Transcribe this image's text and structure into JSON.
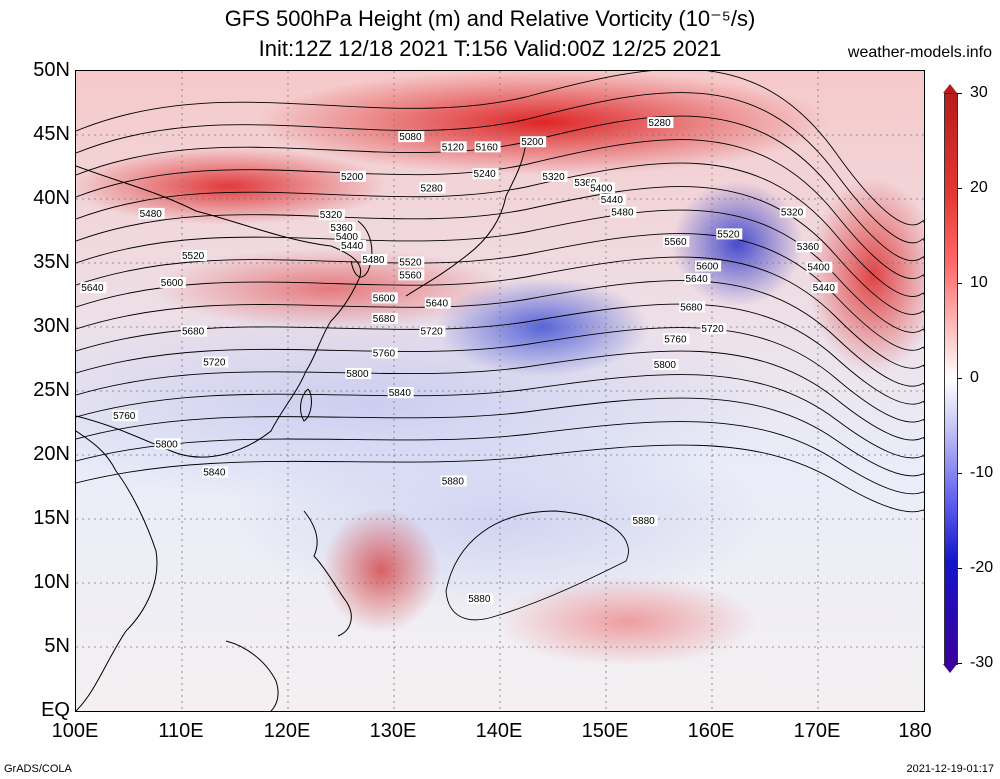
{
  "header": {
    "title_line1": "GFS 500hPa Height (m) and Relative Vorticity (10⁻⁵/s)",
    "title_line2": "Init:12Z 12/18 2021 T:156 Valid:00Z 12/25 2021",
    "site": "weather-models.info"
  },
  "axes": {
    "lat_labels": [
      "50N",
      "45N",
      "40N",
      "35N",
      "30N",
      "25N",
      "20N",
      "15N",
      "10N",
      "5N",
      "EQ"
    ],
    "lon_labels": [
      "100E",
      "110E",
      "120E",
      "130E",
      "140E",
      "150E",
      "160E",
      "170E",
      "180"
    ]
  },
  "colorbar": {
    "labels": [
      "30",
      "20",
      "10",
      "0",
      "-10",
      "-20",
      "-30"
    ],
    "colors": {
      "max": "#b71c1c",
      "zero": "#ffffff",
      "min": "#3b0099"
    }
  },
  "contours": {
    "labels": [
      {
        "text": "5080",
        "lon": 130.5,
        "lat": 44.6
      },
      {
        "text": "5120",
        "lon": 134.5,
        "lat": 43.8
      },
      {
        "text": "5160",
        "lon": 137.7,
        "lat": 43.8
      },
      {
        "text": "5200",
        "lon": 142.0,
        "lat": 44.2
      },
      {
        "text": "5200",
        "lon": 125.0,
        "lat": 41.5
      },
      {
        "text": "5240",
        "lon": 137.5,
        "lat": 41.7
      },
      {
        "text": "5280",
        "lon": 132.5,
        "lat": 40.6
      },
      {
        "text": "5320",
        "lon": 144.0,
        "lat": 41.5
      },
      {
        "text": "5360",
        "lon": 147.0,
        "lat": 41.0
      },
      {
        "text": "5400",
        "lon": 148.5,
        "lat": 40.6
      },
      {
        "text": "5440",
        "lon": 149.5,
        "lat": 39.7
      },
      {
        "text": "5480",
        "lon": 150.5,
        "lat": 38.7
      },
      {
        "text": "5280",
        "lon": 154.0,
        "lat": 45.7
      },
      {
        "text": "5320",
        "lon": 166.5,
        "lat": 38.7
      },
      {
        "text": "5360",
        "lon": 168.0,
        "lat": 36.0
      },
      {
        "text": "5400",
        "lon": 169.0,
        "lat": 34.4
      },
      {
        "text": "5440",
        "lon": 169.5,
        "lat": 32.8
      },
      {
        "text": "5480",
        "lon": 106.0,
        "lat": 38.6
      },
      {
        "text": "5320",
        "lon": 123.0,
        "lat": 38.5
      },
      {
        "text": "5360",
        "lon": 124.0,
        "lat": 37.5
      },
      {
        "text": "5400",
        "lon": 124.5,
        "lat": 36.8
      },
      {
        "text": "5440",
        "lon": 125.0,
        "lat": 36.1
      },
      {
        "text": "5480",
        "lon": 127.0,
        "lat": 35.0
      },
      {
        "text": "5520",
        "lon": 130.5,
        "lat": 34.8
      },
      {
        "text": "5520",
        "lon": 110.0,
        "lat": 35.3
      },
      {
        "text": "5520",
        "lon": 160.5,
        "lat": 37.0
      },
      {
        "text": "5560",
        "lon": 130.5,
        "lat": 33.8
      },
      {
        "text": "5560",
        "lon": 155.5,
        "lat": 36.4
      },
      {
        "text": "5600",
        "lon": 108.0,
        "lat": 33.2
      },
      {
        "text": "5600",
        "lon": 128.0,
        "lat": 32.0
      },
      {
        "text": "5600",
        "lon": 158.5,
        "lat": 34.5
      },
      {
        "text": "5640",
        "lon": 100.5,
        "lat": 32.8
      },
      {
        "text": "5640",
        "lon": 133.0,
        "lat": 31.6
      },
      {
        "text": "5640",
        "lon": 157.5,
        "lat": 33.5
      },
      {
        "text": "5680",
        "lon": 110.0,
        "lat": 29.4
      },
      {
        "text": "5680",
        "lon": 128.0,
        "lat": 30.4
      },
      {
        "text": "5680",
        "lon": 157.0,
        "lat": 31.3
      },
      {
        "text": "5720",
        "lon": 112.0,
        "lat": 27.0
      },
      {
        "text": "5720",
        "lon": 132.5,
        "lat": 29.4
      },
      {
        "text": "5720",
        "lon": 159.0,
        "lat": 29.6
      },
      {
        "text": "5760",
        "lon": 103.5,
        "lat": 22.8
      },
      {
        "text": "5760",
        "lon": 128.0,
        "lat": 27.7
      },
      {
        "text": "5760",
        "lon": 155.5,
        "lat": 28.8
      },
      {
        "text": "5800",
        "lon": 107.5,
        "lat": 20.6
      },
      {
        "text": "5800",
        "lon": 125.5,
        "lat": 26.1
      },
      {
        "text": "5800",
        "lon": 154.5,
        "lat": 26.8
      },
      {
        "text": "5840",
        "lon": 112.0,
        "lat": 18.4
      },
      {
        "text": "5840",
        "lon": 129.5,
        "lat": 24.6
      },
      {
        "text": "5880",
        "lon": 134.5,
        "lat": 17.7
      },
      {
        "text": "5880",
        "lon": 152.5,
        "lat": 14.6
      },
      {
        "text": "5880",
        "lon": 137.0,
        "lat": 8.5
      }
    ]
  }
}
